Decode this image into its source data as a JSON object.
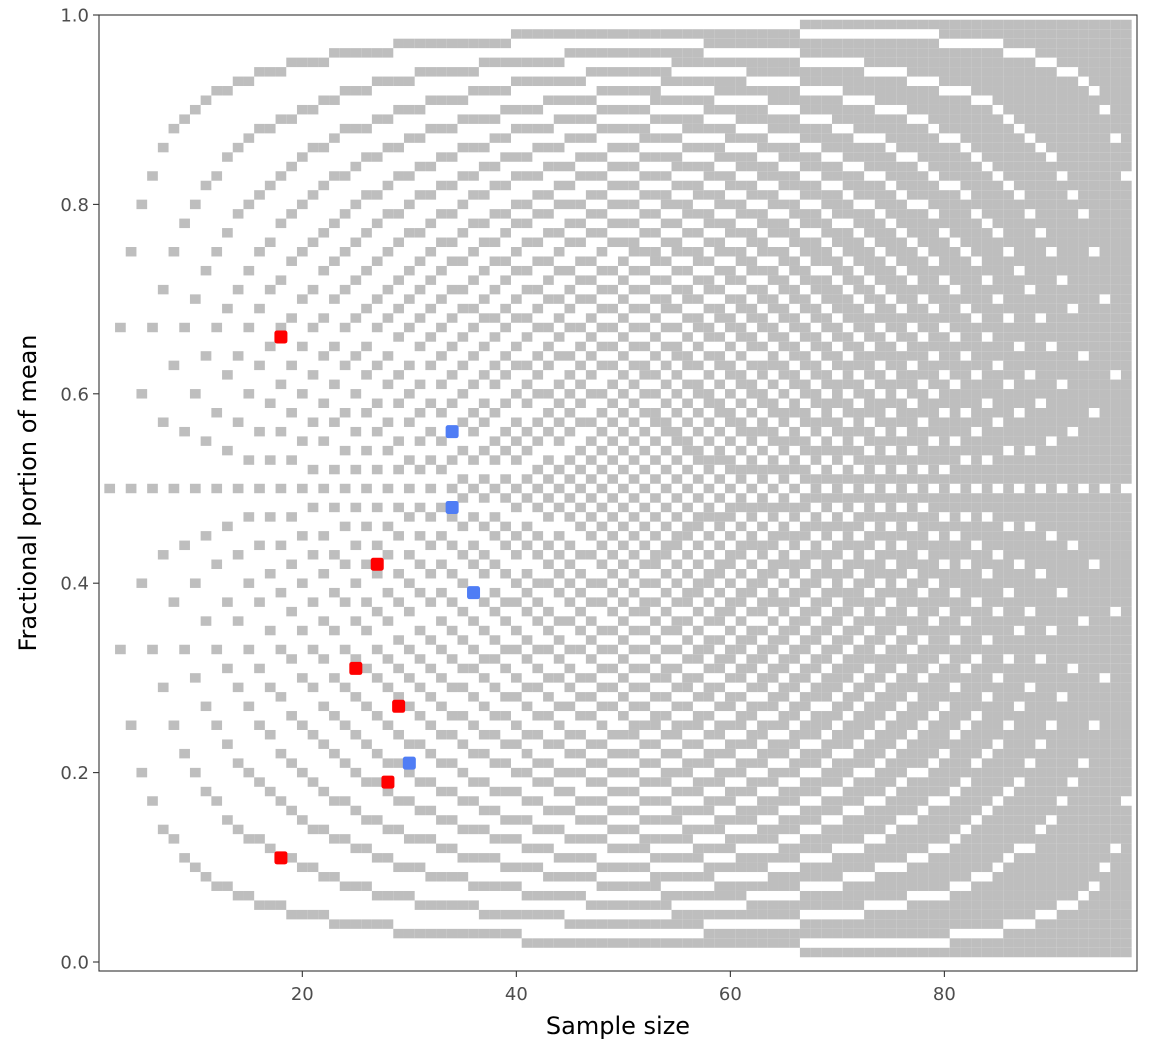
{
  "chart_data": {
    "type": "scatter",
    "title": "",
    "xlabel": "Sample size",
    "ylabel": "Fractional portion of mean",
    "xlim": [
      1,
      98
    ],
    "ylim": [
      0,
      1
    ],
    "x_ticks": [
      20,
      40,
      60,
      80
    ],
    "y_ticks": [
      0.0,
      0.2,
      0.4,
      0.6,
      0.8,
      1.0
    ],
    "x_tick_labels": [
      "20",
      "40",
      "60",
      "80"
    ],
    "y_tick_labels": [
      "0.0",
      "0.2",
      "0.4",
      "0.6",
      "0.8",
      "1.0"
    ],
    "grid": false,
    "panel_border": true,
    "background_feasible_fractions": {
      "description_rule": "for each sample size n from 2 to 97, every fractional part k/n (0<k<n) rounded to 2 decimals",
      "n_min": 2,
      "n_max": 97,
      "decimals": 2,
      "color": "#bebebe"
    },
    "series": [
      {
        "color": "#ff0000",
        "points": [
          {
            "x": 18,
            "y": 0.66
          },
          {
            "x": 18,
            "y": 0.11
          },
          {
            "x": 25,
            "y": 0.31
          },
          {
            "x": 27,
            "y": 0.42
          },
          {
            "x": 28,
            "y": 0.19
          },
          {
            "x": 29,
            "y": 0.27
          }
        ]
      },
      {
        "color": "#4f7df5",
        "points": [
          {
            "x": 30,
            "y": 0.21
          },
          {
            "x": 34,
            "y": 0.56
          },
          {
            "x": 34,
            "y": 0.48
          },
          {
            "x": 36,
            "y": 0.39
          }
        ]
      }
    ]
  },
  "colors": {
    "tick_text": "#4d4d4d",
    "axis_title": "#000000",
    "panel_border": "#333333",
    "background": "#ffffff"
  }
}
